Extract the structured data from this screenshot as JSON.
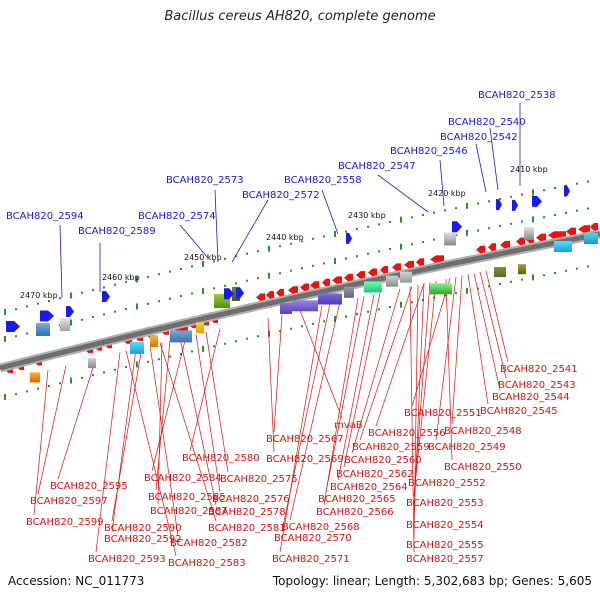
{
  "title": "Bacillus cereus AH820, complete genome",
  "accession": "Accession: NC_011773",
  "topology": "Topology: linear; Length: 5,302,683 bp; Genes: 5,605",
  "kbp_ticks": [
    "2410 kbp",
    "2420 kbp",
    "2430 kbp",
    "2440 kbp",
    "2450 kbp",
    "2460 kbp",
    "2470 kbp"
  ],
  "upper_labels": [
    "BCAH820_2538",
    "BCAH820_2540",
    "BCAH820_2542",
    "BCAH820_2546",
    "BCAH820_2547",
    "BCAH820_2558",
    "BCAH820_2572",
    "BCAH820_2573",
    "BCAH820_2574",
    "BCAH820_2589",
    "BCAH820_2594"
  ],
  "lower_labels": [
    "BCAH820_2541",
    "BCAH820_2543",
    "BCAH820_2544",
    "BCAH820_2545",
    "BCAH820_2551",
    "BCAH820_2548",
    "BCAH820_2556",
    "BCAH820_2549",
    "BCAH820_2559",
    "BCAH820_2550",
    "mvaB",
    "BCAH820_2560",
    "BCAH820_2567",
    "BCAH820_2569",
    "BCAH820_2562",
    "BCAH820_2552",
    "BCAH820_2564",
    "BCAH820_2565",
    "BCAH820_2553",
    "BCAH820_2566",
    "BCAH820_2554",
    "BCAH820_2568",
    "BCAH820_2570",
    "BCAH820_2555",
    "BCAH820_2571",
    "BCAH820_2557",
    "BCAH820_2580",
    "BCAH820_2575",
    "BCAH820_2584",
    "BCAH820_2576",
    "BCAH820_2585",
    "BCAH820_2578",
    "BCAH820_2587",
    "BCAH820_2581",
    "BCAH820_2590",
    "BCAH820_2582",
    "BCAH820_2592",
    "BCAH820_2583",
    "BCAH820_2593",
    "BCAH820_2595",
    "BCAH820_2597",
    "BCAH820_2599"
  ]
}
